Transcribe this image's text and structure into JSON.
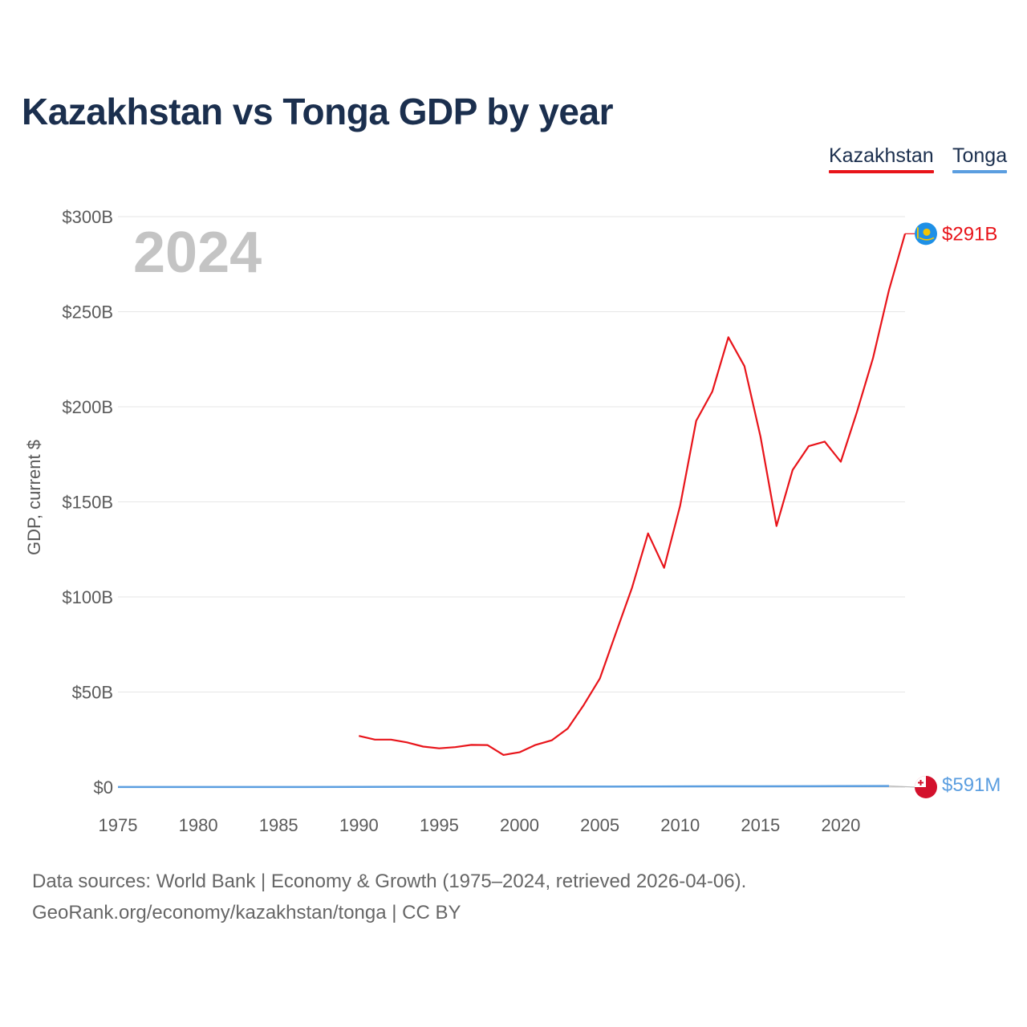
{
  "chart_data": {
    "type": "line",
    "title": "Kazakhstan vs Tonga GDP by year",
    "xlabel": "",
    "ylabel": "GDP, current $",
    "xlim": [
      1975,
      2024
    ],
    "ylim": [
      0,
      300
    ],
    "y_unit": "billions USD",
    "x_ticks": [
      1975,
      1980,
      1985,
      1990,
      1995,
      2000,
      2005,
      2010,
      2015,
      2020
    ],
    "y_ticks": [
      {
        "value": 0,
        "label": "$0"
      },
      {
        "value": 50,
        "label": "$50B"
      },
      {
        "value": 100,
        "label": "$100B"
      },
      {
        "value": 150,
        "label": "$150B"
      },
      {
        "value": 200,
        "label": "$200B"
      },
      {
        "value": 250,
        "label": "$250B"
      },
      {
        "value": 300,
        "label": "$300B"
      }
    ],
    "grid": true,
    "legend": "top-right",
    "year_label": "2024",
    "series": [
      {
        "name": "Kazakhstan",
        "color": "#e8141a",
        "end_label": "$291B",
        "flag_icon": "kazakhstan-flag-icon",
        "x": [
          1990,
          1991,
          1992,
          1993,
          1994,
          1995,
          1996,
          1997,
          1998,
          1999,
          2000,
          2001,
          2002,
          2003,
          2004,
          2005,
          2006,
          2007,
          2008,
          2009,
          2010,
          2011,
          2012,
          2013,
          2014,
          2015,
          2016,
          2017,
          2018,
          2019,
          2020,
          2021,
          2022,
          2023,
          2024
        ],
        "values": [
          26.9,
          25.0,
          25.0,
          23.5,
          21.3,
          20.4,
          21.0,
          22.2,
          22.1,
          16.9,
          18.3,
          22.2,
          24.6,
          30.8,
          43.2,
          57.1,
          81.0,
          104.8,
          133.4,
          115.3,
          148.0,
          192.6,
          208.0,
          236.6,
          221.4,
          184.4,
          137.3,
          166.8,
          179.3,
          181.7,
          171.1,
          197.1,
          225.5,
          261.4,
          291.0
        ]
      },
      {
        "name": "Tonga",
        "color": "#5b9ee0",
        "end_label": "$591M",
        "flag_icon": "tonga-flag-icon",
        "x": [
          1975,
          1980,
          1985,
          1990,
          1995,
          2000,
          2005,
          2010,
          2015,
          2020,
          2023
        ],
        "values": [
          0.03,
          0.04,
          0.05,
          0.11,
          0.17,
          0.2,
          0.26,
          0.37,
          0.44,
          0.49,
          0.59
        ]
      }
    ]
  },
  "footer": {
    "line1": "Data sources: World Bank | Economy & Growth (1975–2024, retrieved 2026-04-06).",
    "line2": "GeoRank.org/economy/kazakhstan/tonga | CC BY"
  }
}
